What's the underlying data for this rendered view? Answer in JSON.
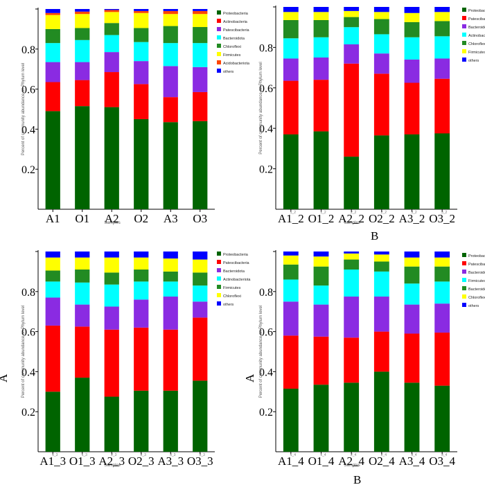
{
  "side_labels": {
    "left_bottom": "A",
    "right_bottom": "A",
    "panel2_bottom": "B",
    "panel4_bottom": "B"
  },
  "chart_data": [
    {
      "type": "bar",
      "stacked": true,
      "ylabel": "Percent of community abundance on Phylum level",
      "xlabel": "Samples",
      "ylim": [
        0,
        1
      ],
      "yticks": [
        "0.2",
        "0.4",
        "0.6",
        "0.8"
      ],
      "categories": [
        "A1",
        "O1",
        "A2",
        "O2",
        "A3",
        "O3"
      ],
      "series": [
        {
          "name": "Proteobacteria",
          "color": "#006400",
          "values": [
            0.49,
            0.515,
            0.51,
            0.45,
            0.435,
            0.44
          ]
        },
        {
          "name": "Actinobacteria",
          "color": "#ff0000",
          "values": [
            0.145,
            0.13,
            0.175,
            0.175,
            0.125,
            0.145
          ]
        },
        {
          "name": "Patescibacteria",
          "color": "#8a2be2",
          "values": [
            0.1,
            0.09,
            0.1,
            0.115,
            0.155,
            0.125
          ]
        },
        {
          "name": "Bacteroidota",
          "color": "#00ffff",
          "values": [
            0.095,
            0.11,
            0.085,
            0.095,
            0.115,
            0.12
          ]
        },
        {
          "name": "Chloroflexi",
          "color": "#228b22",
          "values": [
            0.07,
            0.06,
            0.06,
            0.07,
            0.085,
            0.08
          ]
        },
        {
          "name": "Firmicutes",
          "color": "#ffff00",
          "values": [
            0.07,
            0.07,
            0.055,
            0.075,
            0.06,
            0.065
          ]
        },
        {
          "name": "Acidobacteriota",
          "color": "#ff4500",
          "values": [
            0.01,
            0.012,
            0.01,
            0.01,
            0.015,
            0.015
          ]
        },
        {
          "name": "others",
          "color": "#0000ff",
          "values": [
            0.02,
            0.013,
            0.005,
            0.01,
            0.01,
            0.01
          ]
        }
      ]
    },
    {
      "type": "bar",
      "stacked": true,
      "ylabel": "Percent of community abundance on Phylum level",
      "xlabel": "Samples",
      "ylim": [
        0,
        1
      ],
      "yticks": [
        "0.2",
        "0.4",
        "0.6",
        "0.8"
      ],
      "categories": [
        "A1_2",
        "O1_2",
        "A2_2",
        "O2_2",
        "A3_2",
        "O3_2"
      ],
      "category_superscripts": [
        "1_2",
        "1_2",
        "2_2",
        "2_2",
        "3_2",
        "3_2"
      ],
      "series": [
        {
          "name": "Proteobacteria",
          "color": "#006400",
          "values": [
            0.37,
            0.385,
            0.26,
            0.365,
            0.37,
            0.375
          ]
        },
        {
          "name": "Patescibacteria",
          "color": "#ff0000",
          "values": [
            0.265,
            0.255,
            0.46,
            0.305,
            0.255,
            0.27
          ]
        },
        {
          "name": "Bacteroidota",
          "color": "#8a2be2",
          "values": [
            0.11,
            0.11,
            0.095,
            0.1,
            0.115,
            0.1
          ]
        },
        {
          "name": "Actinobacteriota",
          "color": "#00ffff",
          "values": [
            0.1,
            0.1,
            0.085,
            0.095,
            0.11,
            0.11
          ]
        },
        {
          "name": "Chloroflexi",
          "color": "#228b22",
          "values": [
            0.09,
            0.085,
            0.05,
            0.075,
            0.075,
            0.075
          ]
        },
        {
          "name": "Firmicutes",
          "color": "#ffff00",
          "values": [
            0.04,
            0.04,
            0.03,
            0.035,
            0.045,
            0.045
          ]
        },
        {
          "name": "others",
          "color": "#0000ff",
          "values": [
            0.025,
            0.025,
            0.02,
            0.025,
            0.03,
            0.025
          ]
        }
      ]
    },
    {
      "type": "bar",
      "stacked": true,
      "ylabel": "Percent of community abundance on Phylum level",
      "xlabel": "Samples",
      "ylim": [
        0,
        1
      ],
      "yticks": [
        "0.2",
        "0.4",
        "0.6",
        "0.8"
      ],
      "categories": [
        "A1_3",
        "O1_3",
        "A2_3",
        "O2_3",
        "A3_3",
        "O3_3"
      ],
      "category_superscripts": [
        "1_3",
        "1_3",
        "2_3",
        "2_3",
        "3_3",
        "3_3"
      ],
      "series": [
        {
          "name": "Proteobacteria",
          "color": "#006400",
          "values": [
            0.3,
            0.37,
            0.275,
            0.305,
            0.305,
            0.355
          ]
        },
        {
          "name": "Patescibacteria",
          "color": "#ff0000",
          "values": [
            0.33,
            0.255,
            0.335,
            0.315,
            0.305,
            0.315
          ]
        },
        {
          "name": "Bacteroidota",
          "color": "#8a2be2",
          "values": [
            0.14,
            0.11,
            0.115,
            0.14,
            0.165,
            0.08
          ]
        },
        {
          "name": "Actinobacteriota",
          "color": "#00ffff",
          "values": [
            0.08,
            0.11,
            0.11,
            0.09,
            0.075,
            0.08
          ]
        },
        {
          "name": "Firmicutes",
          "color": "#228b22",
          "values": [
            0.055,
            0.065,
            0.06,
            0.06,
            0.05,
            0.065
          ]
        },
        {
          "name": "Chloroflexi",
          "color": "#ffff00",
          "values": [
            0.065,
            0.06,
            0.075,
            0.06,
            0.065,
            0.065
          ]
        },
        {
          "name": "others",
          "color": "#0000ff",
          "values": [
            0.03,
            0.03,
            0.03,
            0.03,
            0.035,
            0.04
          ]
        }
      ]
    },
    {
      "type": "bar",
      "stacked": true,
      "ylabel": "Percent of community abundance on Phylum level",
      "xlabel": "Samples",
      "ylim": [
        0,
        1
      ],
      "yticks": [
        "0.2",
        "0.4",
        "0.6",
        "0.8"
      ],
      "categories": [
        "A1_4",
        "O1_4",
        "A2_4",
        "O2_4",
        "A3_4",
        "O3_4"
      ],
      "category_superscripts": [
        "1_4",
        "1_4",
        "2_4",
        "2_4",
        "3_4",
        "3_4"
      ],
      "series": [
        {
          "name": "Proteobacteria",
          "color": "#006400",
          "values": [
            0.315,
            0.335,
            0.345,
            0.4,
            0.345,
            0.33
          ]
        },
        {
          "name": "Patescibacteria",
          "color": "#ff0000",
          "values": [
            0.265,
            0.24,
            0.225,
            0.2,
            0.245,
            0.265
          ]
        },
        {
          "name": "Bacteroidota",
          "color": "#8a2be2",
          "values": [
            0.17,
            0.16,
            0.205,
            0.175,
            0.145,
            0.145
          ]
        },
        {
          "name": "Firmicutes",
          "color": "#00ffff",
          "values": [
            0.11,
            0.095,
            0.135,
            0.125,
            0.105,
            0.11
          ]
        },
        {
          "name": "Bacteroidota",
          "color": "#228b22",
          "values": [
            0.075,
            0.095,
            0.05,
            0.05,
            0.085,
            0.075
          ]
        },
        {
          "name": "Chloroflexi",
          "color": "#ffff00",
          "values": [
            0.045,
            0.05,
            0.03,
            0.035,
            0.045,
            0.045
          ]
        },
        {
          "name": "others",
          "color": "#0000ff",
          "values": [
            0.02,
            0.025,
            0.01,
            0.015,
            0.03,
            0.03
          ]
        }
      ]
    }
  ]
}
